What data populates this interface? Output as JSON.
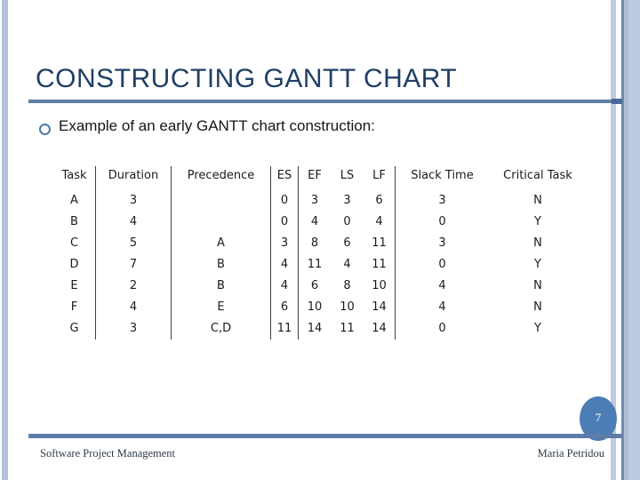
{
  "slide": {
    "title": "CONSTRUCTING GANTT CHART",
    "bullet": "Example of an early GANTT chart construction:",
    "page_number": "7",
    "footer_left": "Software Project Management",
    "footer_right": "Maria Petridou"
  },
  "table": {
    "columns": [
      "Task",
      "Duration",
      "Precedence",
      "ES",
      "EF",
      "LS",
      "LF",
      "Slack Time",
      "Critical Task"
    ],
    "rows": [
      [
        "A",
        "3",
        "",
        "0",
        "3",
        "3",
        "6",
        "3",
        "N"
      ],
      [
        "B",
        "4",
        "",
        "0",
        "4",
        "0",
        "4",
        "0",
        "Y"
      ],
      [
        "C",
        "5",
        "A",
        "3",
        "8",
        "6",
        "11",
        "3",
        "N"
      ],
      [
        "D",
        "7",
        "B",
        "4",
        "11",
        "4",
        "11",
        "0",
        "Y"
      ],
      [
        "E",
        "2",
        "B",
        "4",
        "6",
        "8",
        "10",
        "4",
        "N"
      ],
      [
        "F",
        "4",
        "E",
        "6",
        "10",
        "10",
        "14",
        "4",
        "N"
      ],
      [
        "G",
        "3",
        "C,D",
        "11",
        "14",
        "11",
        "14",
        "0",
        "Y"
      ]
    ]
  },
  "colors": {
    "title_text": "#1f3f66",
    "accent_line": "#5e7ca8",
    "accent_line_cap": "#46689b",
    "page_bubble": "#4c7db4",
    "stripe_light": "#bfcadf",
    "stripe_dark": "#7089ae",
    "table_text": "#1b1b1b",
    "table_divider": "#3f3f3f"
  }
}
